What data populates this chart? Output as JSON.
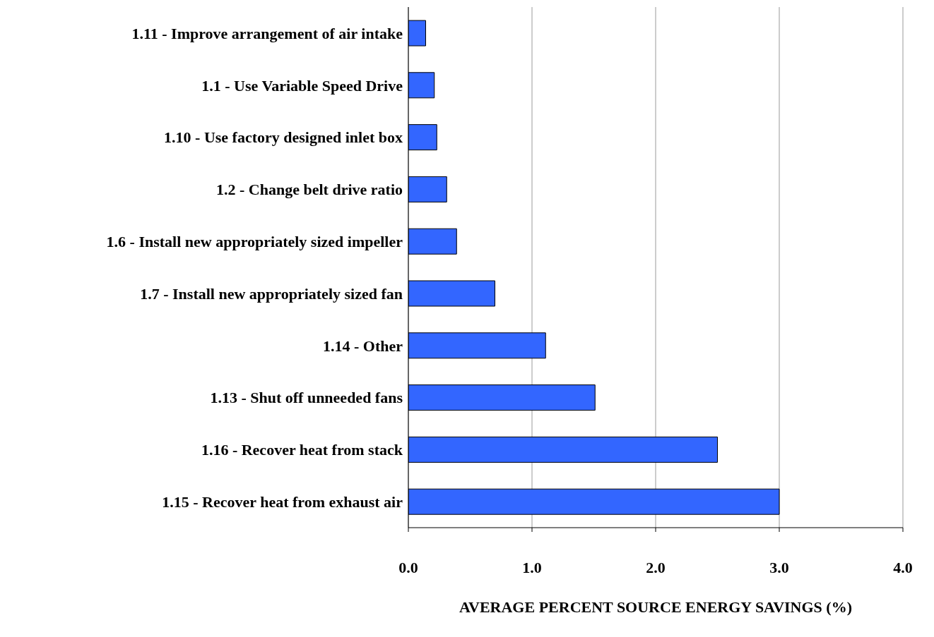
{
  "chart_data": {
    "type": "bar",
    "orientation": "horizontal",
    "categories": [
      "1.11 - Improve arrangement of air intake",
      "1.1 - Use Variable Speed Drive",
      "1.10 - Use factory designed inlet box",
      "1.2 - Change belt drive ratio",
      "1.6 - Install new appropriately sized impeller",
      "1.7 - Install new appropriately sized fan",
      "1.14 - Other",
      "1.13 - Shut off unneeded fans",
      "1.16 - Recover heat from stack",
      "1.15 - Recover heat from exhaust air"
    ],
    "values": [
      0.14,
      0.21,
      0.23,
      0.31,
      0.39,
      0.7,
      1.11,
      1.51,
      2.5,
      3.0
    ],
    "color": "#3366ff",
    "xlim": [
      0,
      4
    ],
    "xticks": [
      {
        "value": 0,
        "label": "0.0"
      },
      {
        "value": 1,
        "label": "1.0"
      },
      {
        "value": 2,
        "label": "2.0"
      },
      {
        "value": 3,
        "label": "3.0"
      },
      {
        "value": 4,
        "label": "4.0"
      }
    ],
    "xlabel": "AVERAGE PERCENT SOURCE ENERGY SAVINGS (%)",
    "grid": "x"
  }
}
